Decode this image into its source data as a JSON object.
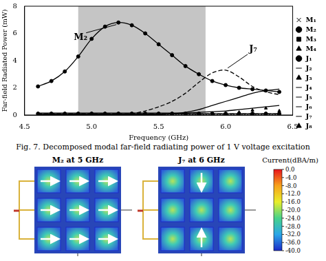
{
  "chart_data": {
    "type": "line",
    "x_label": "Frequency (GHz)",
    "y_label": "Far-field Radiated Power (mW)",
    "x": [
      4.6,
      4.7,
      4.8,
      4.9,
      5.0,
      5.1,
      5.2,
      5.3,
      5.4,
      5.5,
      5.6,
      5.7,
      5.8,
      5.9,
      6.0,
      6.1,
      6.2,
      6.3,
      6.4
    ],
    "xlim": [
      4.5,
      6.5
    ],
    "xticks": [
      4.5,
      {
        "value": 5,
        "label": "5.0"
      },
      5.5,
      {
        "value": 6,
        "label": "6.0"
      },
      6.5
    ],
    "ylim": [
      0,
      8
    ],
    "yticks": [
      0,
      2,
      4,
      6,
      8
    ],
    "grid": false,
    "legend": "right",
    "shaded_region": {
      "x": [
        4.9,
        5.85
      ]
    },
    "annotations": [
      {
        "text": "M₂",
        "series": "M₂"
      },
      {
        "text": "J₇",
        "series": "J₇"
      }
    ],
    "series": [
      {
        "name": "M₁",
        "color": "#000000",
        "marker": "cross",
        "line_style": "none",
        "values": [
          0.05,
          0.05,
          0.05,
          0.06,
          0.06,
          0.06,
          0.06,
          0.06,
          0.06,
          0.07,
          0.07,
          0.07,
          0.08,
          0.08,
          0.08,
          0.09,
          0.09,
          0.1,
          0.1
        ]
      },
      {
        "name": "M₂",
        "color": "#000000",
        "marker": "circle",
        "line_style": "solid",
        "values": [
          2.1,
          2.5,
          3.2,
          4.3,
          5.6,
          6.5,
          6.8,
          6.6,
          6.0,
          5.2,
          4.4,
          3.6,
          3.0,
          2.5,
          2.2,
          2.0,
          1.9,
          1.8,
          1.7
        ]
      },
      {
        "name": "M₃",
        "color": "#000000",
        "marker": "square",
        "line_style": "none",
        "values": [
          0.02,
          0.02,
          0.02,
          0.02,
          0.02,
          0.02,
          0.02,
          0.02,
          0.02,
          0.02,
          0.03,
          0.03,
          0.03,
          0.03,
          0.03,
          0.03,
          0.04,
          0.04,
          0.04
        ]
      },
      {
        "name": "M₄",
        "color": "#000000",
        "marker": "triangle",
        "line_style": "none",
        "values": [
          0.1,
          0.1,
          0.1,
          0.1,
          0.1,
          0.1,
          0.1,
          0.1,
          0.1,
          0.1,
          0.1,
          0.1,
          0.1,
          0.1,
          0.1,
          0.1,
          0.1,
          0.1,
          0.1
        ]
      },
      {
        "name": "J₁",
        "color": "#000000",
        "marker": "circle",
        "line_style": "solid",
        "values": [
          0.1,
          0.1,
          0.1,
          0.1,
          0.1,
          0.1,
          0.1,
          0.1,
          0.1,
          0.1,
          0.1,
          0.1,
          0.1,
          0.1,
          0.1,
          0.1,
          0.1,
          0.1,
          0.1
        ]
      },
      {
        "name": "J₂",
        "color": "#000000",
        "marker": "none",
        "line_style": "solid",
        "values": [
          0.15,
          0.15,
          0.15,
          0.15,
          0.15,
          0.15,
          0.15,
          0.15,
          0.15,
          0.15,
          0.15,
          0.15,
          0.2,
          0.25,
          0.3,
          0.4,
          0.5,
          0.6,
          0.7
        ]
      },
      {
        "name": "J₃",
        "color": "#000000",
        "marker": "triangle",
        "line_style": "none",
        "values": [
          0.05,
          0.05,
          0.05,
          0.05,
          0.05,
          0.05,
          0.05,
          0.05,
          0.05,
          0.05,
          0.05,
          0.05,
          0.05,
          0.05,
          0.05,
          0.05,
          0.05,
          0.05,
          0.05
        ]
      },
      {
        "name": "J₄",
        "color": "#000000",
        "marker": "none",
        "line_style": "dashed",
        "values": [
          0.08,
          0.08,
          0.08,
          0.08,
          0.08,
          0.08,
          0.08,
          0.08,
          0.08,
          0.08,
          0.08,
          0.08,
          0.08,
          0.08,
          0.08,
          0.08,
          0.08,
          0.08,
          0.08
        ]
      },
      {
        "name": "J₅",
        "color": "#000000",
        "marker": "none",
        "line_style": "solid",
        "values": [
          0.02,
          0.02,
          0.02,
          0.02,
          0.02,
          0.02,
          0.02,
          0.02,
          0.02,
          0.02,
          0.1,
          0.2,
          0.4,
          0.7,
          1.0,
          1.3,
          1.6,
          1.8,
          1.9
        ]
      },
      {
        "name": "J₆",
        "color": "#000000",
        "marker": "none",
        "line_style": "dotted",
        "values": [
          0.05,
          0.05,
          0.05,
          0.05,
          0.05,
          0.05,
          0.05,
          0.05,
          0.05,
          0.05,
          0.05,
          0.05,
          0.05,
          0.05,
          0.05,
          0.05,
          0.05,
          0.05,
          0.05
        ]
      },
      {
        "name": "J₇",
        "color": "#000000",
        "marker": "none",
        "line_style": "dashed",
        "values": [
          0,
          0,
          0,
          0,
          0,
          0,
          0,
          0.1,
          0.3,
          0.6,
          1.0,
          1.6,
          2.4,
          3.1,
          3.3,
          2.8,
          2.1,
          1.7,
          1.5
        ]
      },
      {
        "name": "J₈",
        "color": "#000000",
        "marker": "triangle",
        "line_style": "none",
        "values": [
          0.03,
          0.03,
          0.03,
          0.03,
          0.03,
          0.03,
          0.03,
          0.03,
          0.03,
          0.03,
          0.03,
          0.03,
          0.03,
          0.05,
          0.1,
          0.2,
          0.35,
          0.5,
          0.3
        ]
      }
    ]
  },
  "caption": "Fig. 7.   Decomposed modal far-field radiating power of 1 V voltage excitation",
  "current_plot": {
    "panels": [
      "M₂ at 5 GHz",
      "J₇ at 6 GHz"
    ],
    "colorbar": {
      "title": "Current(dBA/m)",
      "range": [
        -40,
        0
      ],
      "ticks": [
        {
          "value": 0,
          "label": "0.0"
        },
        {
          "value": -4,
          "label": "-4.0"
        },
        {
          "value": -8,
          "label": "-8.0"
        },
        {
          "value": -12,
          "label": "-12.0"
        },
        {
          "value": -16,
          "label": "-16.0"
        },
        {
          "value": -20,
          "label": "-20.0"
        },
        {
          "value": -24,
          "label": "-24.0"
        },
        {
          "value": -28,
          "label": "-28.0"
        },
        {
          "value": -32,
          "label": "-32.0"
        },
        {
          "value": -36,
          "label": "-36.0"
        },
        {
          "value": -40,
          "label": "-40.0"
        }
      ]
    }
  }
}
